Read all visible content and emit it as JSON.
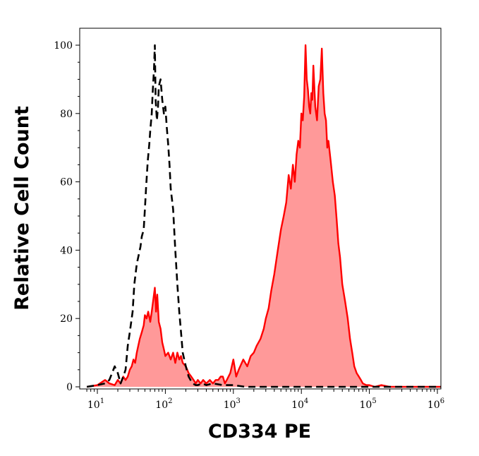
{
  "chart_data": {
    "type": "area",
    "title": "",
    "xlabel": "CD334 PE",
    "ylabel": "Relative Cell Count",
    "x_scale": "log10",
    "xlim": [
      7,
      1200000
    ],
    "ylim": [
      0,
      100
    ],
    "x_ticks": [
      {
        "base": "10",
        "exp": "1",
        "value": 10
      },
      {
        "base": "10",
        "exp": "2",
        "value": 100
      },
      {
        "base": "10",
        "exp": "3",
        "value": 1000
      },
      {
        "base": "10",
        "exp": "4",
        "value": 10000
      },
      {
        "base": "10",
        "exp": "5",
        "value": 100000
      },
      {
        "base": "10",
        "exp": "6",
        "value": 1000000
      }
    ],
    "y_ticks": [
      {
        "label": "0",
        "value": 0
      },
      {
        "label": "20",
        "value": 20
      },
      {
        "label": "40",
        "value": 40
      },
      {
        "label": "60",
        "value": 60
      },
      {
        "label": "80",
        "value": 80
      },
      {
        "label": "100",
        "value": 100
      }
    ],
    "grid": false,
    "legend": "none",
    "series": [
      {
        "style": "dashed-line",
        "color": "#000000",
        "fill": "none",
        "x": [
          7,
          10,
          13,
          15,
          18,
          20,
          22,
          24,
          26,
          28,
          30,
          33,
          35,
          38,
          40,
          43,
          45,
          48,
          50,
          52,
          55,
          58,
          60,
          63,
          65,
          68,
          70,
          72,
          75,
          78,
          80,
          85,
          90,
          95,
          100,
          105,
          110,
          115,
          120,
          130,
          140,
          150,
          160,
          170,
          180,
          200,
          220,
          250,
          280,
          300,
          350,
          400,
          500,
          700,
          1000,
          1500,
          3000,
          10000,
          30000,
          100000,
          300000,
          1000000,
          1200000
        ],
        "y": [
          0,
          0.5,
          1,
          2,
          6,
          4,
          1,
          3,
          5,
          12,
          16,
          22,
          30,
          36,
          38,
          41,
          44,
          46,
          52,
          58,
          66,
          71,
          75,
          80,
          86,
          93,
          100,
          84,
          78,
          82,
          88,
          90,
          84,
          80,
          82,
          76,
          71,
          65,
          58,
          52,
          40,
          30,
          22,
          16,
          10,
          6,
          3,
          1,
          0.5,
          0.5,
          1,
          0.5,
          1,
          0.5,
          0.5,
          0,
          0,
          0,
          0,
          0,
          0,
          0,
          0
        ]
      },
      {
        "style": "filled-line",
        "color": "#ff0000",
        "fill": "#ff9999",
        "x": [
          7,
          10,
          13,
          15,
          18,
          20,
          22,
          24,
          26,
          28,
          30,
          32,
          34,
          36,
          38,
          40,
          42,
          45,
          48,
          50,
          53,
          56,
          60,
          63,
          66,
          70,
          73,
          76,
          80,
          85,
          90,
          95,
          100,
          110,
          120,
          130,
          140,
          150,
          160,
          170,
          180,
          200,
          220,
          240,
          260,
          280,
          300,
          330,
          360,
          400,
          450,
          500,
          550,
          600,
          650,
          700,
          750,
          800,
          900,
          1000,
          1100,
          1200,
          1400,
          1600,
          1800,
          2000,
          2200,
          2500,
          2800,
          3000,
          3300,
          3600,
          4000,
          4500,
          5000,
          5500,
          6000,
          6500,
          7000,
          7500,
          8000,
          8500,
          9000,
          9500,
          10000,
          10500,
          11000,
          11500,
          12000,
          12500,
          13000,
          13500,
          14000,
          14500,
          15000,
          16000,
          17000,
          18000,
          19000,
          20000,
          21000,
          22000,
          23000,
          24000,
          25000,
          27000,
          29000,
          31000,
          33000,
          35000,
          37000,
          40000,
          44000,
          48000,
          52000,
          56000,
          60000,
          65000,
          70000,
          75000,
          80000,
          90000,
          100000,
          120000,
          150000,
          200000,
          300000,
          500000,
          1000000,
          1200000
        ],
        "y": [
          0,
          0.5,
          2,
          1,
          0.5,
          2,
          1,
          3,
          2,
          3,
          5,
          6,
          8,
          7,
          10,
          12,
          14,
          16,
          18,
          21,
          20,
          22,
          19,
          22,
          25,
          29,
          22,
          27,
          19,
          17,
          13,
          11,
          9,
          10,
          8,
          10,
          7,
          10,
          8,
          9,
          7,
          6,
          4,
          3,
          2,
          1,
          2,
          1,
          2,
          1,
          2,
          1,
          2,
          2,
          3,
          3,
          1,
          2,
          4,
          8,
          3,
          5,
          8,
          6,
          9,
          10,
          12,
          14,
          17,
          20,
          23,
          28,
          33,
          40,
          46,
          50,
          54,
          62,
          58,
          65,
          60,
          68,
          72,
          70,
          80,
          78,
          85,
          100,
          90,
          87,
          82,
          80,
          86,
          84,
          94,
          82,
          78,
          88,
          90,
          99,
          86,
          80,
          78,
          70,
          72,
          66,
          60,
          56,
          49,
          42,
          38,
          30,
          25,
          20,
          14,
          10,
          6,
          4,
          3,
          2,
          1,
          0.5,
          0.5,
          0,
          0.5,
          0,
          0,
          0,
          0,
          0
        ]
      }
    ]
  }
}
